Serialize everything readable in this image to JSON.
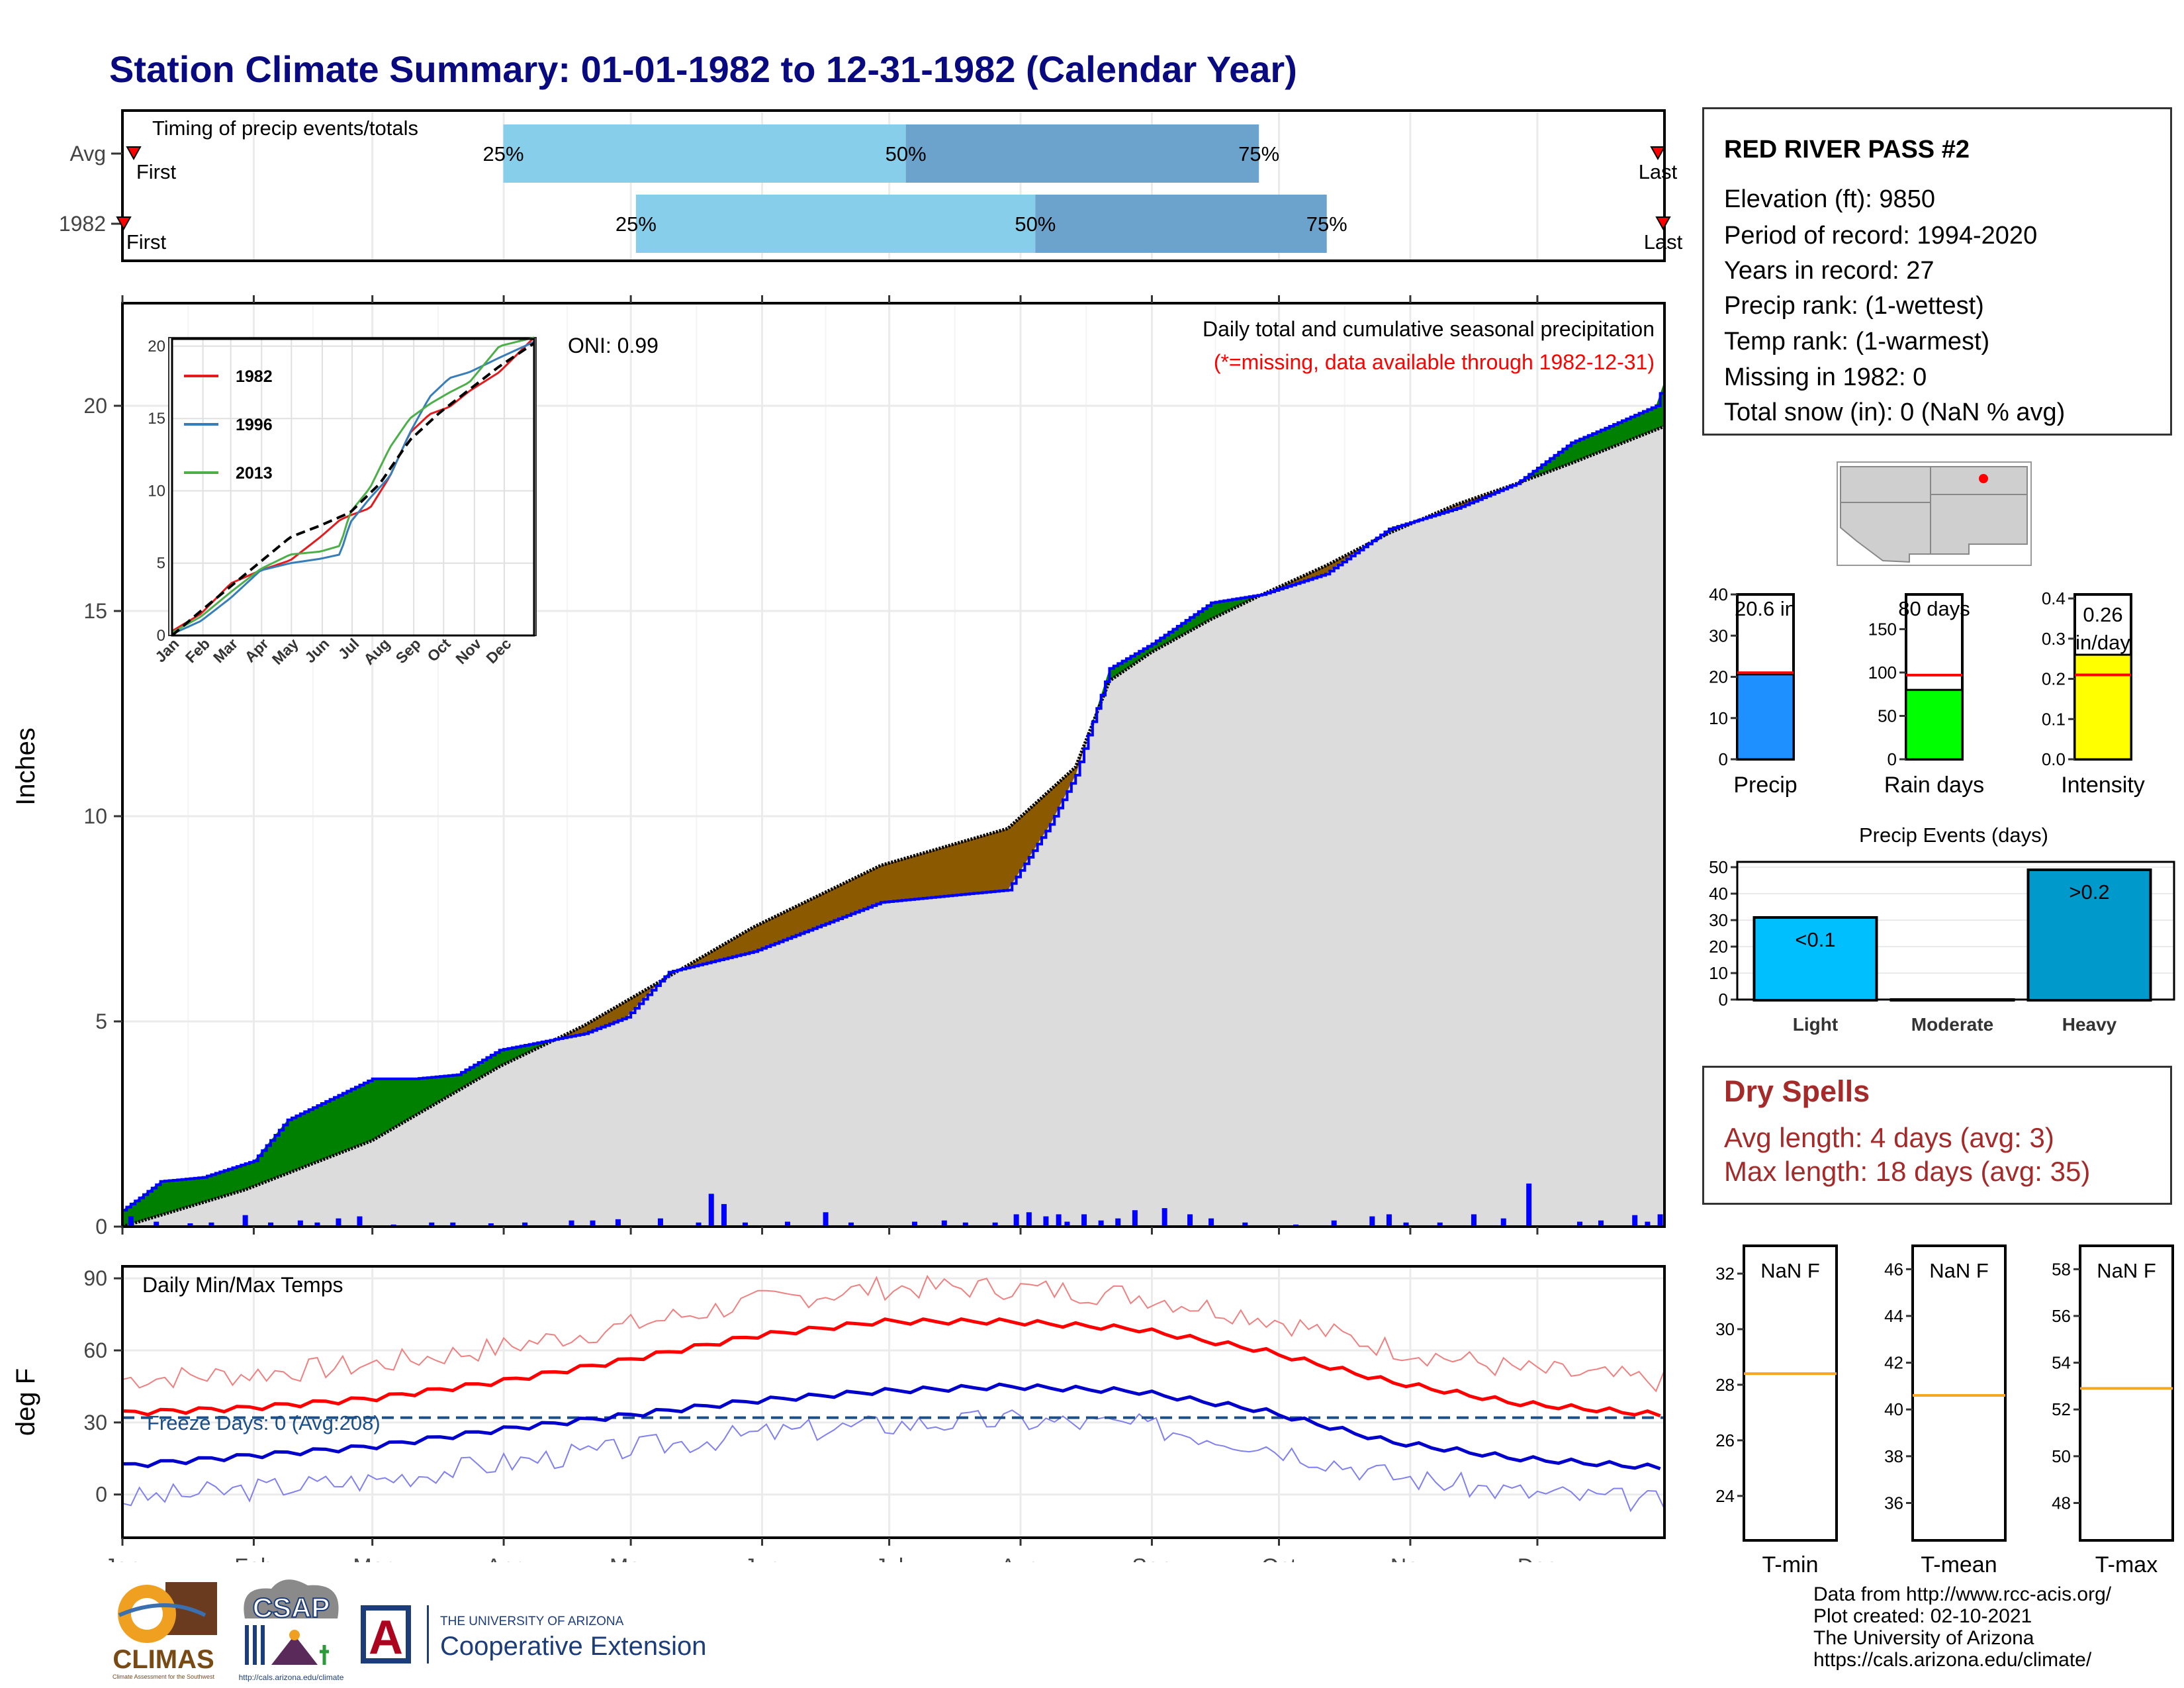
{
  "title": "Station Climate Summary: 01-01-1982 to 12-31-1982 (Calendar Year)",
  "colors": {
    "title": "#0a0a80",
    "timing_light": "#87ceeb",
    "timing_dark": "#6ba3cc",
    "above_avg_fill": "#008000",
    "below_avg_fill": "#8b5a00",
    "climatology_fill": "#dcdcdc",
    "cumulative_line": "#0000ff",
    "daily_bars": "#0000ff",
    "max_temp": "#ff0000",
    "min_temp": "#0000cc",
    "dry_spell_text": "#a52a2a"
  },
  "timing": {
    "title": "Timing of precip events/totals",
    "rows": [
      {
        "label": "Avg",
        "first_label": "First",
        "last_label": "Last",
        "p25": 0.247,
        "p50": 0.508,
        "p75": 0.737,
        "p25_label": "25%",
        "p50_label": "50%",
        "p75_label": "75%"
      },
      {
        "label": "1982",
        "first_label": "First",
        "last_label": "Last",
        "p25": 0.333,
        "p50": 0.592,
        "p75": 0.781,
        "p25_label": "25%",
        "p50_label": "50%",
        "p75_label": "75%"
      }
    ]
  },
  "main_chart": {
    "ylabel": "Inches",
    "subtitle": "Daily total and cumulative seasonal precipitation",
    "missing_note": "(*=missing, data available through 1982-12-31)",
    "oni": "ONI: 0.99",
    "yticks": [
      "0",
      "5",
      "10",
      "15",
      "20"
    ],
    "ylim": [
      0,
      22.5
    ]
  },
  "chart_data": [
    {
      "type": "area",
      "title": "Daily total and cumulative seasonal precipitation",
      "ylabel": "Inches",
      "x_unit": "day of year",
      "xlim": [
        1,
        365
      ],
      "ylim": [
        0,
        22.5
      ],
      "series": [
        {
          "name": "1982",
          "x": [
            1,
            5,
            10,
            20,
            32,
            40,
            60,
            70,
            80,
            90,
            110,
            120,
            130,
            150,
            180,
            210,
            220,
            226,
            234,
            244,
            258,
            270,
            285,
            300,
            316,
            330,
            343,
            352,
            363,
            365
          ],
          "values": [
            0.4,
            0.7,
            1.1,
            1.2,
            1.6,
            2.6,
            3.6,
            3.6,
            3.7,
            4.3,
            4.7,
            5.1,
            6.2,
            6.7,
            7.9,
            8.2,
            9.8,
            11.0,
            13.6,
            14.2,
            15.2,
            15.4,
            15.9,
            17.0,
            17.5,
            18.1,
            19.1,
            19.5,
            20.0,
            20.6
          ]
        },
        {
          "name": "Avg",
          "x": [
            1,
            30,
            60,
            90,
            110,
            120,
            150,
            180,
            210,
            226,
            234,
            244,
            258,
            270,
            285,
            300,
            316,
            330,
            343,
            365
          ],
          "values": [
            0.0,
            0.9,
            2.1,
            3.9,
            4.9,
            5.5,
            7.3,
            8.8,
            9.7,
            11.2,
            13.3,
            14.0,
            14.8,
            15.4,
            16.1,
            16.9,
            17.6,
            18.1,
            18.6,
            19.5
          ]
        }
      ],
      "daily_precip": {
        "days": [
          3,
          9,
          17,
          22,
          30,
          36,
          43,
          47,
          52,
          57,
          65,
          74,
          79,
          88,
          96,
          107,
          112,
          118,
          128,
          137,
          140,
          143,
          148,
          158,
          167,
          173,
          188,
          195,
          200,
          207,
          212,
          215,
          219,
          222,
          224,
          228,
          232,
          236,
          240,
          247,
          253,
          258,
          266,
          278,
          287,
          296,
          300,
          304,
          312,
          320,
          327,
          333,
          345,
          350,
          358,
          361,
          364
        ],
        "values": [
          0.25,
          0.12,
          0.08,
          0.1,
          0.28,
          0.1,
          0.15,
          0.1,
          0.2,
          0.25,
          0.05,
          0.1,
          0.1,
          0.08,
          0.1,
          0.15,
          0.15,
          0.18,
          0.2,
          0.1,
          0.8,
          0.55,
          0.1,
          0.12,
          0.35,
          0.1,
          0.12,
          0.15,
          0.1,
          0.1,
          0.3,
          0.35,
          0.25,
          0.3,
          0.12,
          0.3,
          0.15,
          0.2,
          0.4,
          0.45,
          0.3,
          0.2,
          0.1,
          0.05,
          0.15,
          0.25,
          0.3,
          0.1,
          0.1,
          0.3,
          0.2,
          1.05,
          0.12,
          0.15,
          0.28,
          0.12,
          0.3
        ]
      }
    },
    {
      "type": "line",
      "title": "",
      "xlabel": "",
      "ylabel": "",
      "x_tick_labels": [
        "Jan",
        "Feb",
        "Mar",
        "Apr",
        "May",
        "Jun",
        "Jul",
        "Aug",
        "Sep",
        "Oct",
        "Nov",
        "Dec"
      ],
      "ylim": [
        0,
        20.5
      ],
      "yticks": [
        0,
        5,
        10,
        15,
        20
      ],
      "legend_position": "top-left",
      "series": [
        {
          "name": "1982",
          "color": "#e41a1c",
          "x": [
            1,
            30,
            60,
            90,
            120,
            150,
            170,
            180,
            200,
            220,
            240,
            260,
            280,
            300,
            330,
            365
          ],
          "values": [
            0.3,
            1.5,
            3.6,
            4.5,
            5.2,
            6.8,
            8.0,
            8.3,
            8.8,
            11.0,
            14.0,
            15.3,
            15.8,
            16.9,
            18.2,
            20.6
          ]
        },
        {
          "name": "1996",
          "color": "#377eb8",
          "x": [
            1,
            30,
            60,
            90,
            120,
            150,
            170,
            180,
            200,
            220,
            240,
            260,
            280,
            300,
            330,
            365
          ],
          "values": [
            0.1,
            1.0,
            2.6,
            4.5,
            5.0,
            5.3,
            5.6,
            7.8,
            9.5,
            11.0,
            14.0,
            16.5,
            17.8,
            18.2,
            19.2,
            20.3
          ]
        },
        {
          "name": "2013",
          "color": "#4daf4a",
          "x": [
            1,
            30,
            60,
            90,
            120,
            150,
            170,
            180,
            200,
            220,
            240,
            260,
            280,
            300,
            330,
            365
          ],
          "values": [
            0.2,
            1.3,
            3.0,
            4.6,
            5.6,
            5.8,
            6.2,
            8.5,
            10.2,
            13.0,
            15.0,
            16.0,
            16.8,
            17.5,
            20.0,
            20.6
          ]
        },
        {
          "name": "",
          "color": "#000000",
          "x": [
            1,
            30,
            60,
            90,
            120,
            150,
            180,
            210,
            240,
            270,
            300,
            330,
            365
          ],
          "values": [
            0.0,
            1.7,
            3.4,
            5.1,
            6.8,
            7.6,
            8.5,
            10.5,
            13.5,
            15.4,
            17.0,
            18.6,
            20.2
          ]
        }
      ]
    },
    {
      "type": "line",
      "title": "Daily Min/Max Temps",
      "ylabel": "deg F",
      "x_tick_labels": [
        "Jan",
        "Feb",
        "Mar",
        "Apr",
        "May",
        "Jun",
        "Jul",
        "Aug",
        "Sep",
        "Oct",
        "Nov",
        "Dec"
      ],
      "ylim": [
        -18,
        95
      ],
      "yticks": [
        0,
        30,
        60,
        90
      ],
      "annotation": "Freeze Days: 0 (Avg:208)",
      "series": [
        {
          "name": "",
          "color": "#ff0000",
          "x": [
            1,
            30,
            60,
            90,
            120,
            150,
            180,
            210,
            240,
            270,
            300,
            330,
            365
          ],
          "values": [
            34,
            36,
            40,
            47,
            56,
            66,
            72,
            72,
            69,
            60,
            47,
            38,
            33
          ]
        },
        {
          "name": "",
          "color": "#0000cc",
          "x": [
            1,
            30,
            60,
            90,
            120,
            150,
            180,
            210,
            240,
            270,
            300,
            330,
            365
          ],
          "values": [
            12,
            16,
            20,
            27,
            33,
            39,
            43,
            45,
            43,
            35,
            22,
            15,
            11
          ]
        }
      ]
    },
    {
      "type": "bar",
      "title": "",
      "categories": [
        "Precip",
        "Rain days",
        "Intensity"
      ],
      "series": [
        {
          "name": "",
          "values": [
            20.6,
            80,
            0.26
          ]
        }
      ],
      "reference_avg": [
        21,
        97,
        0.21
      ],
      "value_labels": [
        "20.6 in",
        "80 days",
        "0.26 in/day"
      ],
      "ylims": [
        [
          0,
          40
        ],
        [
          0,
          190
        ],
        [
          0,
          0.4
        ]
      ]
    },
    {
      "type": "bar",
      "title": "Precip Events (days)",
      "categories": [
        "Light",
        "Moderate",
        "Heavy"
      ],
      "series": [
        {
          "name": "",
          "values": [
            31,
            0,
            49
          ]
        }
      ],
      "value_labels": [
        "<0.1",
        "",
        ">0.2"
      ],
      "ylim": [
        0,
        52
      ]
    }
  ],
  "station": {
    "name": "RED RIVER PASS #2",
    "lines": [
      "Elevation (ft): 9850",
      "Period of record: 1994-2020",
      "Years in record: 27",
      "Precip rank:  (1-wettest)",
      "Temp rank:  (1-warmest)",
      "Missing in 1982: 0",
      "Total snow (in): 0 (NaN % avg)"
    ]
  },
  "mini_bars": [
    {
      "label": "Precip",
      "value": 20.6,
      "value_label": "20.6 in",
      "avg": 21,
      "ymax": 40,
      "ticks": [
        "0",
        "10",
        "20",
        "30",
        "40"
      ],
      "color": "#1e90ff"
    },
    {
      "label": "Rain days",
      "value": 80,
      "value_label": "80 days",
      "avg": 97,
      "ymax": 190,
      "ticks": [
        "0",
        "50",
        "100",
        "150"
      ],
      "color": "#00ff00"
    },
    {
      "label": "Intensity",
      "value": 0.26,
      "value_label": "0.26 in/day",
      "avg": 0.21,
      "ymax": 0.41,
      "ticks": [
        "0.0",
        "0.1",
        "0.2",
        "0.3",
        "0.4"
      ],
      "color": "#ffff00"
    }
  ],
  "events": {
    "title": "Precip Events (days)",
    "yticks": [
      "0",
      "10",
      "20",
      "30",
      "40",
      "50"
    ],
    "bars": [
      {
        "label": "Light",
        "value": 31,
        "value_label": "<0.1",
        "color": "#00bfff"
      },
      {
        "label": "Moderate",
        "value": 0,
        "value_label": "",
        "color": "#0099cc"
      },
      {
        "label": "Heavy",
        "value": 49,
        "value_label": ">0.2",
        "color": "#0099cc"
      }
    ]
  },
  "dry_spells": {
    "title": "Dry Spells",
    "avg_line": "Avg length: 4 days (avg: 3)",
    "max_line": "Max length: 18 days (avg: 35)"
  },
  "temps_panel": {
    "title": "Daily Min/Max Temps",
    "ylabel": "deg F",
    "freeze": "Freeze Days: 0 (Avg:208)",
    "yticks": [
      "0",
      "30",
      "60",
      "90"
    ],
    "months": [
      "Jan",
      "Feb",
      "Mar",
      "Apr",
      "May",
      "Jun",
      "Jul",
      "Aug",
      "Sep",
      "Oct",
      "Nov",
      "Dec"
    ]
  },
  "temp_boxes": [
    {
      "label": "T-min",
      "value_label": "NaN F",
      "ticks": [
        "24",
        "26",
        "28",
        "30",
        "32"
      ],
      "ref": 28.4
    },
    {
      "label": "T-mean",
      "value_label": "NaN F",
      "ticks": [
        "36",
        "38",
        "40",
        "42",
        "44",
        "46"
      ],
      "ref": 40.6
    },
    {
      "label": "T-max",
      "value_label": "NaN F",
      "ticks": [
        "48",
        "50",
        "52",
        "54",
        "56",
        "58"
      ],
      "ref": 52.9
    }
  ],
  "footer": {
    "lines": [
      "Data from http://www.rcc-acis.org/",
      "Plot created: 02-10-2021",
      "The University of Arizona",
      "https://cals.arizona.edu/climate/"
    ]
  },
  "logos": {
    "climas": "CLIMAS",
    "climas_sub": "Climate Assessment for the Southwest",
    "csap": "CSAP",
    "csap_url": "http://cals.arizona.edu/climate",
    "ua_small": "THE UNIVERSITY OF ARIZONA",
    "ua_big": "Cooperative Extension",
    "ua_letter": "A"
  }
}
